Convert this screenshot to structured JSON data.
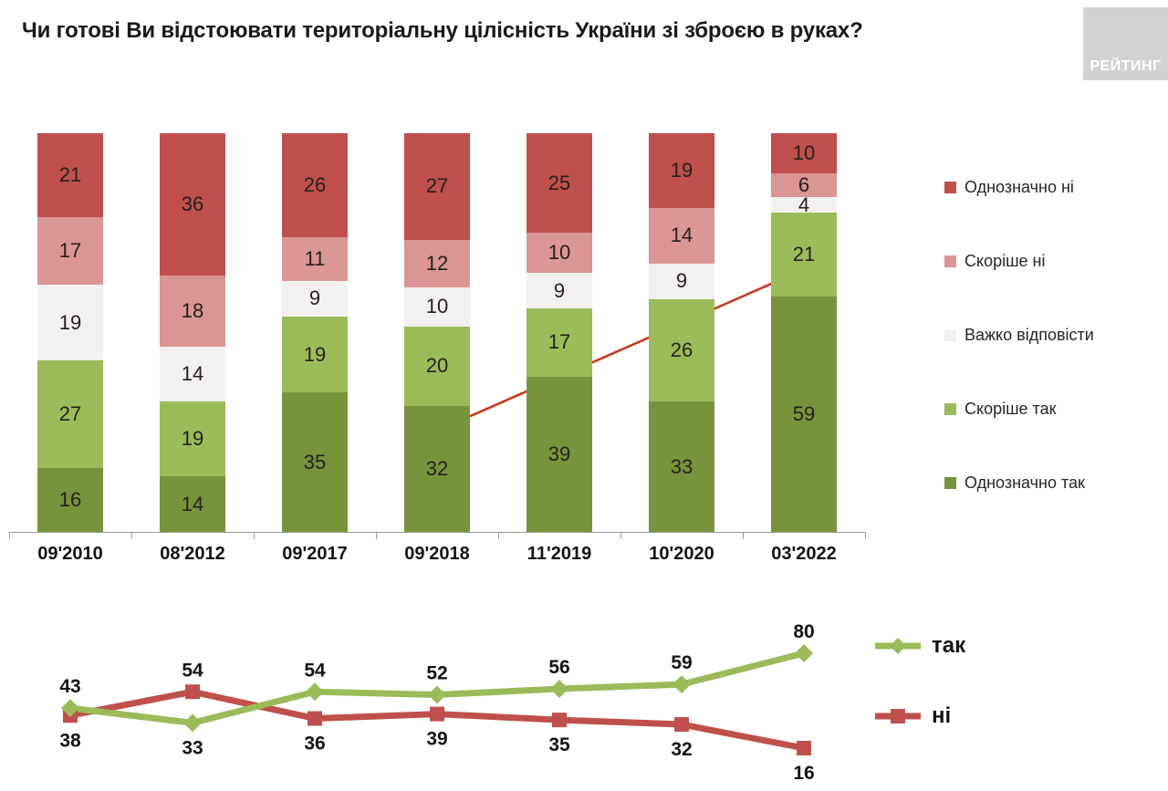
{
  "title": "Чи готові Ви відстоювати територіальну цілісність України зі зброєю в руках?",
  "logo": {
    "text": "РЕЙТИНГ"
  },
  "colors": {
    "definitely_no": "#c0504d",
    "rather_no": "#d99694",
    "hard_to_answer": "#f2f1f0",
    "rather_yes": "#9bbb59",
    "definitely_yes": "#77933c",
    "line_yes": "#9bbb59",
    "line_no": "#c0504d",
    "arrow": "#c83a1e",
    "arrow_head": "#e8320c",
    "label_text": "#26201e",
    "logo_bg": "#d2d2d2"
  },
  "chart_data": [
    {
      "type": "bar",
      "stacked": true,
      "categories": [
        "09'2010",
        "08'2012",
        "09'2017",
        "09'2018",
        "11'2019",
        "10'2020",
        "03'2022"
      ],
      "series": [
        {
          "name": "Однозначно ні",
          "color": "#c0504d",
          "values": [
            21,
            36,
            26,
            27,
            25,
            19,
            10
          ]
        },
        {
          "name": "Скоріше ні",
          "color": "#d99694",
          "values": [
            17,
            18,
            11,
            12,
            10,
            14,
            6
          ]
        },
        {
          "name": "Важко відповісти",
          "color": "#f2f1f0",
          "values": [
            19,
            14,
            9,
            10,
            9,
            9,
            4
          ]
        },
        {
          "name": "Скоріше так",
          "color": "#9bbb59",
          "values": [
            27,
            19,
            19,
            20,
            17,
            26,
            21
          ]
        },
        {
          "name": "Однозначно так",
          "color": "#77933c",
          "values": [
            16,
            14,
            35,
            32,
            39,
            33,
            59
          ]
        }
      ],
      "legend_position": "right",
      "ylim": [
        0,
        100
      ],
      "grid": false,
      "annotation": {
        "type": "arrow",
        "from_category": "09'2018",
        "to_category": "03'2022",
        "to_series": "Скоріше так",
        "to_value": 21
      }
    },
    {
      "type": "line",
      "categories": [
        "09'2010",
        "08'2012",
        "09'2017",
        "09'2018",
        "11'2019",
        "10'2020",
        "03'2022"
      ],
      "series": [
        {
          "name": "так",
          "color": "#9bbb59",
          "marker": "diamond",
          "values": [
            43,
            33,
            54,
            52,
            56,
            59,
            80
          ]
        },
        {
          "name": "ні",
          "color": "#c0504d",
          "marker": "square",
          "values": [
            38,
            54,
            36,
            39,
            35,
            32,
            16
          ]
        }
      ],
      "legend_position": "right",
      "grid": false
    }
  ]
}
